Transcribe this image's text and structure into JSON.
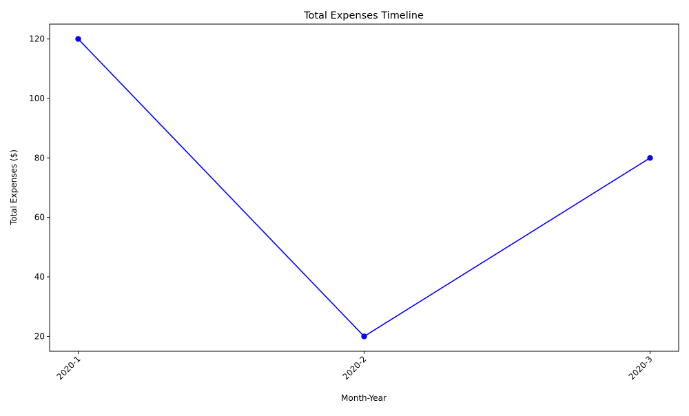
{
  "chart_data": {
    "type": "line",
    "title": "Total Expenses Timeline",
    "xlabel": "Month-Year",
    "ylabel": "Total Expenses ($)",
    "categories": [
      "2020-1",
      "2020-2",
      "2020-3"
    ],
    "series": [
      {
        "values": [
          120,
          20,
          80
        ],
        "color": "#0000ff",
        "marker": "circle"
      }
    ],
    "ylim": [
      15,
      125
    ],
    "yticks": [
      20,
      40,
      60,
      80,
      100,
      120
    ],
    "x_tick_rotation_deg": 45,
    "grid": false,
    "legend": "none"
  }
}
